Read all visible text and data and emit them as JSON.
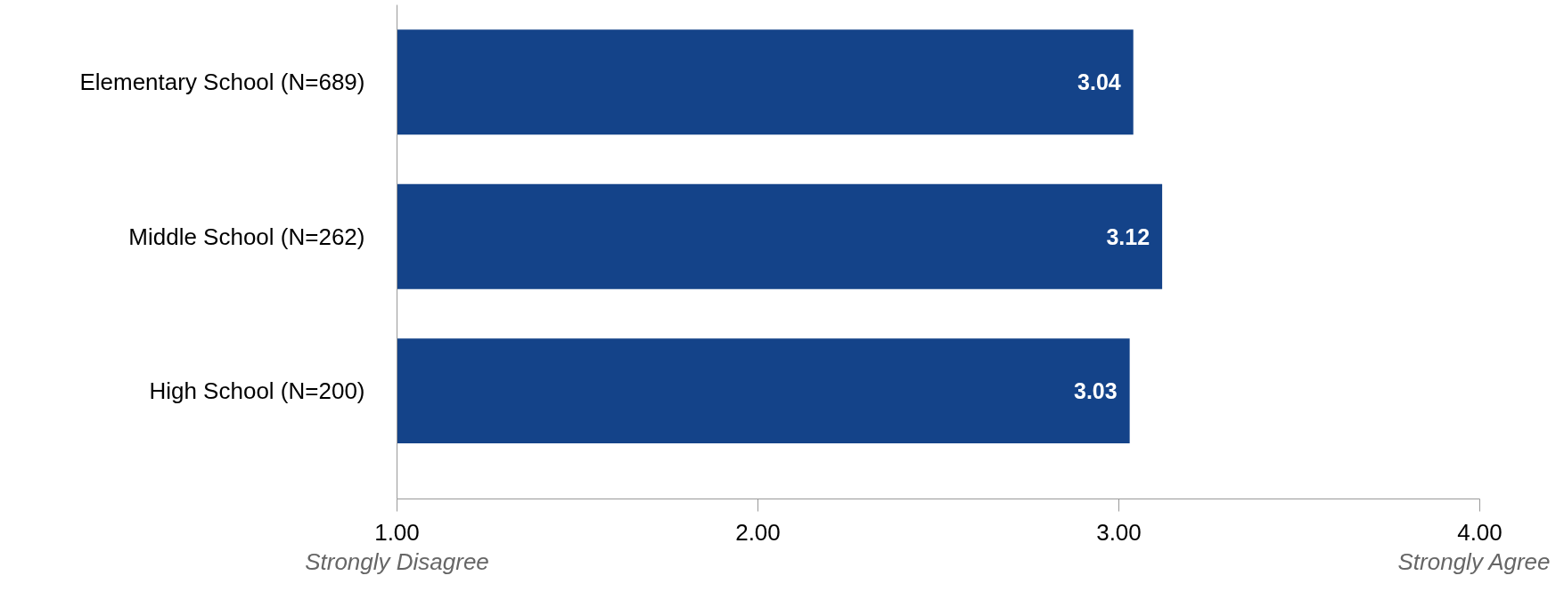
{
  "chart_data": {
    "type": "bar",
    "orientation": "horizontal",
    "categories": [
      "Elementary School (N=689)",
      "Middle School (N=262)",
      "High School (N=200)"
    ],
    "values": [
      3.04,
      3.12,
      3.03
    ],
    "color": "#144389",
    "xlim": [
      1,
      4
    ],
    "xticks": [
      {
        "value": 1,
        "label": "1.00"
      },
      {
        "value": 2,
        "label": "2.00"
      },
      {
        "value": 3,
        "label": "3.00"
      },
      {
        "value": 4,
        "label": "4.00"
      }
    ],
    "data_labels": true,
    "grid": false,
    "annotations": [
      "Strongly Disagree",
      "Strongly Agree"
    ]
  }
}
